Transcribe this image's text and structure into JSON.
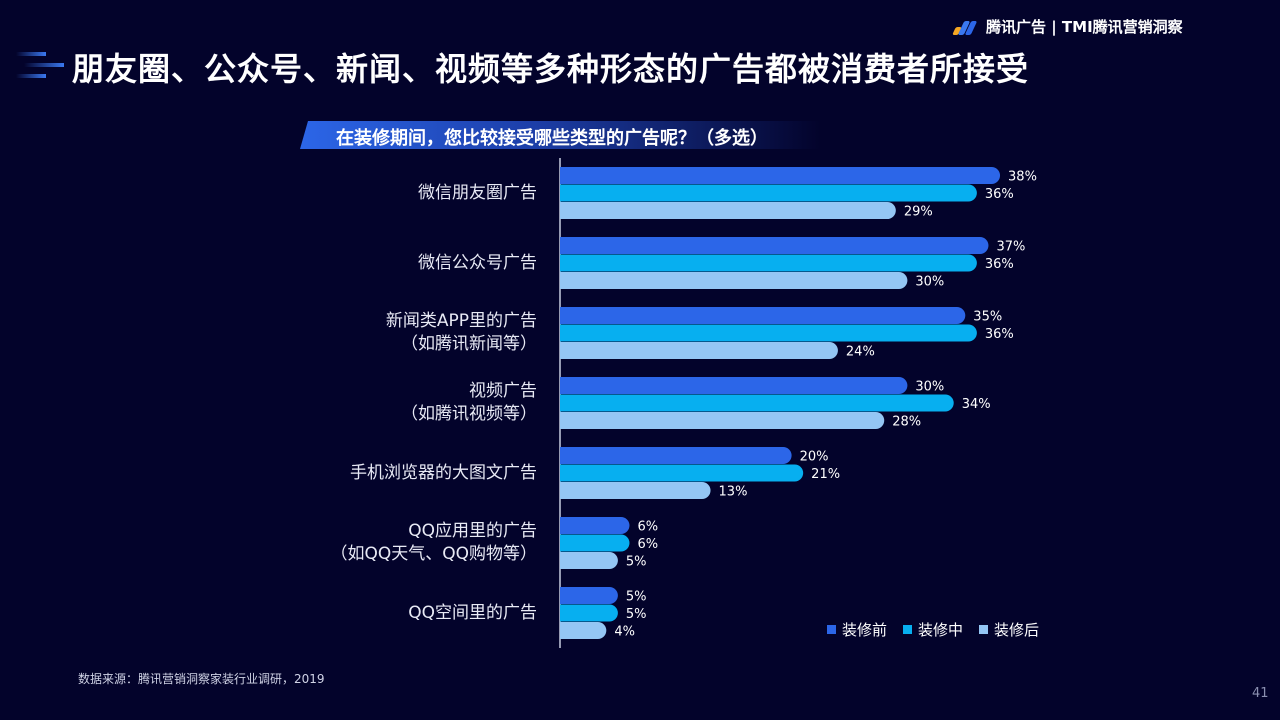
{
  "brand": {
    "text": "腾讯广告 | TMI腾讯营销洞察"
  },
  "title": "朋友圈、公众号、新闻、视频等多种形态的广告都被消费者所接受",
  "footer": {
    "source": "数据来源：腾讯营销洞察家装行业调研，2019",
    "page": "41"
  },
  "chart_data": {
    "type": "bar",
    "orientation": "horizontal",
    "title": "在装修期间，您比较接受哪些类型的广告呢？（多选）",
    "categories": [
      [
        "微信朋友圈广告"
      ],
      [
        "微信公众号广告"
      ],
      [
        "新闻类APP里的广告",
        "（如腾讯新闻等）"
      ],
      [
        "视频广告",
        "（如腾讯视频等）"
      ],
      [
        "手机浏览器的大图文广告"
      ],
      [
        "QQ应用里的广告",
        "（如QQ天气、QQ购物等）"
      ],
      [
        "QQ空间里的广告"
      ]
    ],
    "series": [
      {
        "name": "装修前",
        "color": "#2c66e8",
        "values": [
          38,
          37,
          35,
          30,
          20,
          6,
          5
        ]
      },
      {
        "name": "装修中",
        "color": "#07aff0",
        "values": [
          36,
          36,
          36,
          34,
          21,
          6,
          5
        ]
      },
      {
        "name": "装修后",
        "color": "#94c6f4",
        "values": [
          29,
          30,
          24,
          28,
          13,
          5,
          4
        ]
      }
    ],
    "value_format": "percent",
    "legend": "bottom-right",
    "grid": false
  }
}
